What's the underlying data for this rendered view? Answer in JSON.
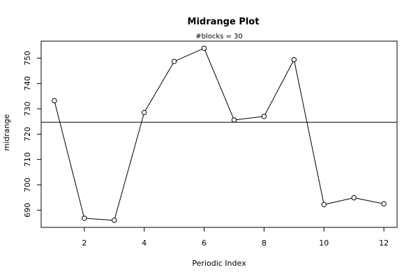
{
  "chart_data": {
    "type": "line",
    "title": "Midrange Plot",
    "subtitle": "#blocks =  30",
    "xlabel": "Periodic Index",
    "ylabel": "midrange",
    "x": [
      1,
      2,
      3,
      4,
      5,
      6,
      7,
      8,
      9,
      10,
      11,
      12
    ],
    "y": [
      733.2,
      686.8,
      686.0,
      728.5,
      748.7,
      753.9,
      725.6,
      727.0,
      749.4,
      692.2,
      694.9,
      692.5
    ],
    "reference_line": 724.7,
    "xlim": [
      0.56,
      12.44
    ],
    "ylim": [
      683.2,
      756.7
    ],
    "xticks": [
      2,
      4,
      6,
      8,
      10,
      12
    ],
    "yticks": [
      690,
      700,
      710,
      720,
      730,
      740,
      750
    ],
    "grid": false,
    "legend": "none",
    "line_color": "#000000",
    "marker": "open-circle"
  }
}
